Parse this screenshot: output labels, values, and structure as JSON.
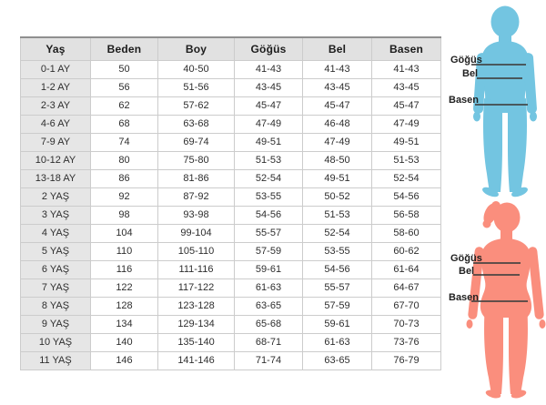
{
  "table": {
    "headers": [
      "Yaş",
      "Beden",
      "Boy",
      "Göğüs",
      "Bel",
      "Basen"
    ],
    "rows": [
      [
        "0-1 AY",
        "50",
        "40-50",
        "41-43",
        "41-43",
        "41-43"
      ],
      [
        "1-2 AY",
        "56",
        "51-56",
        "43-45",
        "43-45",
        "43-45"
      ],
      [
        "2-3 AY",
        "62",
        "57-62",
        "45-47",
        "45-47",
        "45-47"
      ],
      [
        "4-6 AY",
        "68",
        "63-68",
        "47-49",
        "46-48",
        "47-49"
      ],
      [
        "7-9 AY",
        "74",
        "69-74",
        "49-51",
        "47-49",
        "49-51"
      ],
      [
        "10-12 AY",
        "80",
        "75-80",
        "51-53",
        "48-50",
        "51-53"
      ],
      [
        "13-18 AY",
        "86",
        "81-86",
        "52-54",
        "49-51",
        "52-54"
      ],
      [
        "2 YAŞ",
        "92",
        "87-92",
        "53-55",
        "50-52",
        "54-56"
      ],
      [
        "3 YAŞ",
        "98",
        "93-98",
        "54-56",
        "51-53",
        "56-58"
      ],
      [
        "4 YAŞ",
        "104",
        "99-104",
        "55-57",
        "52-54",
        "58-60"
      ],
      [
        "5 YAŞ",
        "110",
        "105-110",
        "57-59",
        "53-55",
        "60-62"
      ],
      [
        "6 YAŞ",
        "116",
        "111-116",
        "59-61",
        "54-56",
        "61-64"
      ],
      [
        "7 YAŞ",
        "122",
        "117-122",
        "61-63",
        "55-57",
        "64-67"
      ],
      [
        "8 YAŞ",
        "128",
        "123-128",
        "63-65",
        "57-59",
        "67-70"
      ],
      [
        "9 YAŞ",
        "134",
        "129-134",
        "65-68",
        "59-61",
        "70-73"
      ],
      [
        "10 YAŞ",
        "140",
        "135-140",
        "68-71",
        "61-63",
        "73-76"
      ],
      [
        "11 YAŞ",
        "146",
        "141-146",
        "71-74",
        "63-65",
        "76-79"
      ]
    ]
  },
  "male_figure": {
    "chest_label": "Göğüs",
    "waist_label": "Bel",
    "hips_label": "Basen"
  },
  "female_figure": {
    "chest_label": "Göğüs",
    "waist_label": "Bel",
    "hips_label": "Basen"
  },
  "colors": {
    "male_silhouette": "#73c5e1",
    "female_silhouette": "#fa8e7d",
    "measure_line": "#3f3f3f",
    "header_bg": "#e1e1e1",
    "row_header_bg": "#e6e6e6",
    "table_border": "#cccccc",
    "table_top_border": "#8f8f8f",
    "text": "#2e2e2e"
  }
}
